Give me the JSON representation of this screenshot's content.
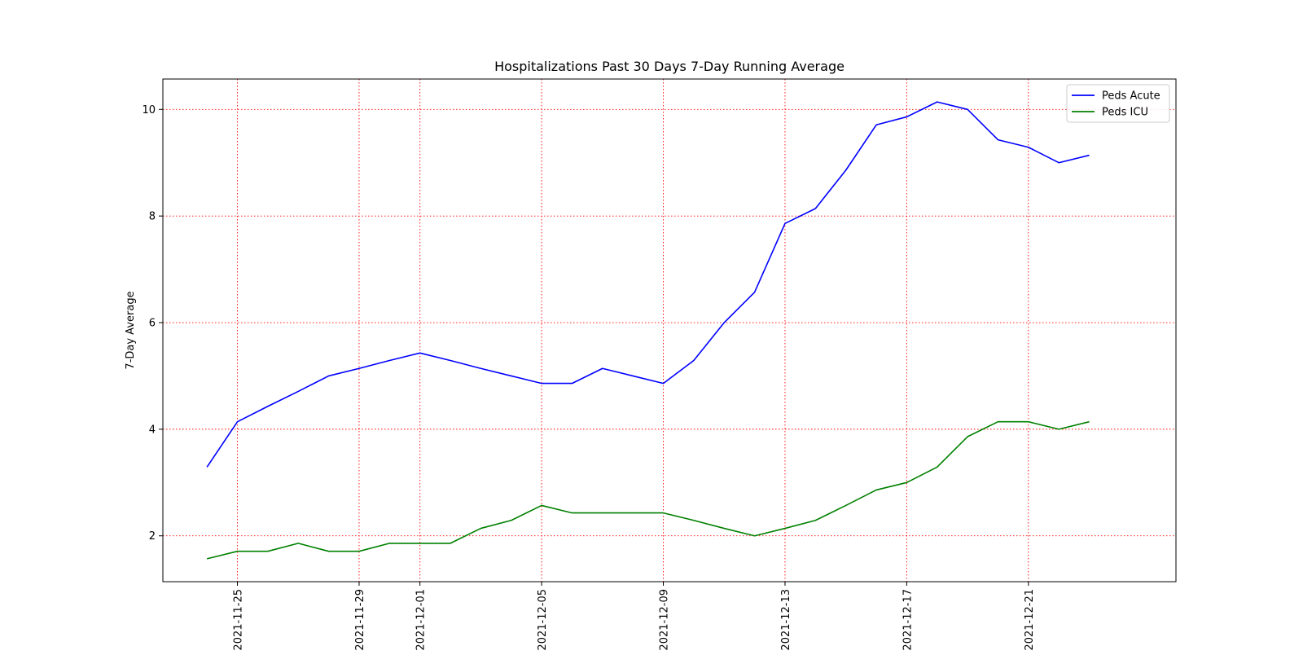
{
  "chart_data": {
    "type": "line",
    "title": "Hospitalizations Past 30 Days 7-Day Running Average",
    "xlabel": "",
    "ylabel": "7-Day Average",
    "x": [
      "2021-11-24",
      "2021-11-25",
      "2021-11-26",
      "2021-11-27",
      "2021-11-28",
      "2021-11-29",
      "2021-11-30",
      "2021-12-01",
      "2021-12-02",
      "2021-12-03",
      "2021-12-04",
      "2021-12-05",
      "2021-12-06",
      "2021-12-07",
      "2021-12-08",
      "2021-12-09",
      "2021-12-10",
      "2021-12-11",
      "2021-12-12",
      "2021-12-13",
      "2021-12-14",
      "2021-12-15",
      "2021-12-16",
      "2021-12-17",
      "2021-12-18",
      "2021-12-19",
      "2021-12-20",
      "2021-12-21",
      "2021-12-22",
      "2021-12-23",
      "2021-12-24"
    ],
    "x_ticks": [
      "2021-11-25",
      "2021-11-29",
      "2021-12-01",
      "2021-12-05",
      "2021-12-09",
      "2021-12-13",
      "2021-12-17",
      "2021-12-21"
    ],
    "y_ticks": [
      2,
      4,
      6,
      8,
      10
    ],
    "ylim": [
      1.14,
      10.57
    ],
    "xlim": [
      "2021-11-22 13:12",
      "2021-12-25 20:24"
    ],
    "grid": true,
    "legend_position": "top-right",
    "series": [
      {
        "name": "Peds Acute",
        "color": "#0000ff",
        "values": [
          3.29,
          4.14,
          4.43,
          4.71,
          5.0,
          5.14,
          5.29,
          5.43,
          5.29,
          5.14,
          5.0,
          4.86,
          4.86,
          5.14,
          5.0,
          4.86,
          5.29,
          6.0,
          6.57,
          7.86,
          8.14,
          8.86,
          9.71,
          9.86,
          10.14,
          10.0,
          9.43,
          9.29,
          9.0,
          9.14,
          null
        ]
      },
      {
        "name": "Peds ICU",
        "color": "#008000",
        "values": [
          1.57,
          1.71,
          1.71,
          1.86,
          1.71,
          1.71,
          1.86,
          1.86,
          1.86,
          2.14,
          2.29,
          2.57,
          2.43,
          2.43,
          2.43,
          2.43,
          2.29,
          2.14,
          2.0,
          2.14,
          2.29,
          2.57,
          2.86,
          3.0,
          3.29,
          3.86,
          4.14,
          4.14,
          4.0,
          4.14,
          null
        ]
      }
    ],
    "grid_color": "#ff0000"
  }
}
